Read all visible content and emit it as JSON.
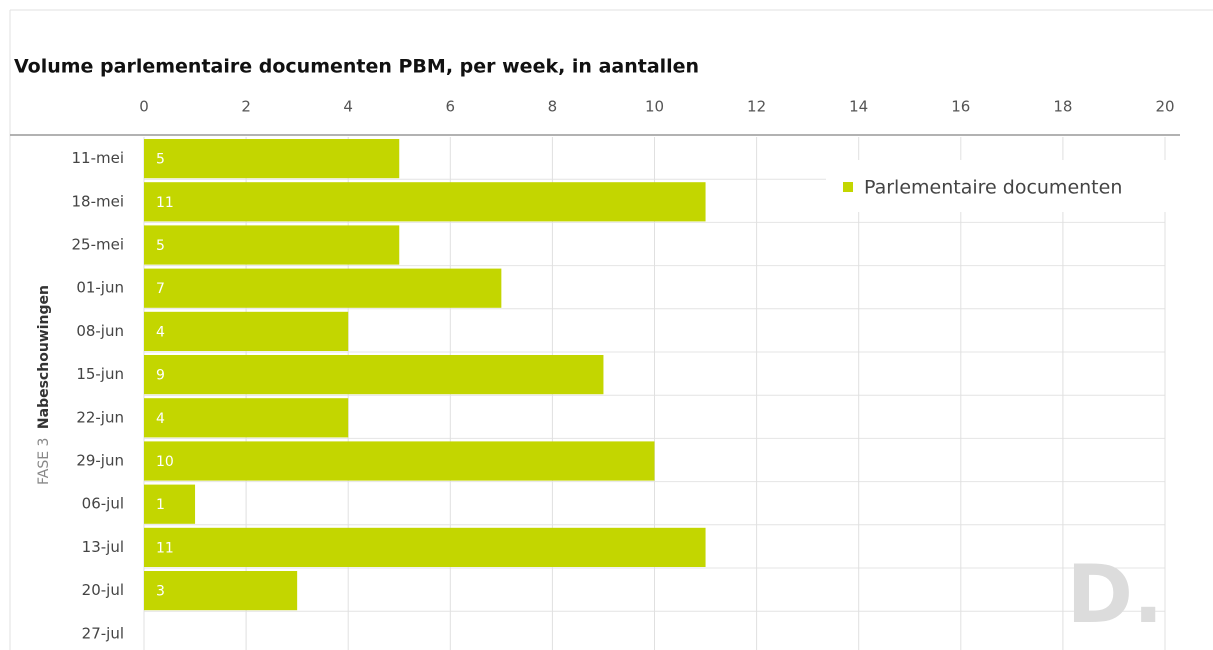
{
  "chart_data": {
    "type": "barh",
    "title": "Volume parlementaire documenten PBM, per week, in aantallen",
    "group_label": {
      "phase": "FASE 3",
      "name": "Nabeschouwingen"
    },
    "watermark": "D.",
    "categories": [
      "11-mei",
      "18-mei",
      "25-mei",
      "01-jun",
      "08-jun",
      "15-jun",
      "22-jun",
      "29-jun",
      "06-jul",
      "13-jul",
      "20-jul",
      "27-jul"
    ],
    "series": [
      {
        "name": "Parlementaire documenten",
        "color": "#c3d600",
        "values": [
          5,
          11,
          5,
          7,
          4,
          9,
          4,
          10,
          1,
          11,
          3,
          0
        ]
      }
    ],
    "xlim": [
      0,
      20
    ],
    "xticks": [
      0,
      2,
      4,
      6,
      8,
      10,
      12,
      14,
      16,
      18,
      20
    ],
    "grid": true,
    "legend": "top-right"
  }
}
